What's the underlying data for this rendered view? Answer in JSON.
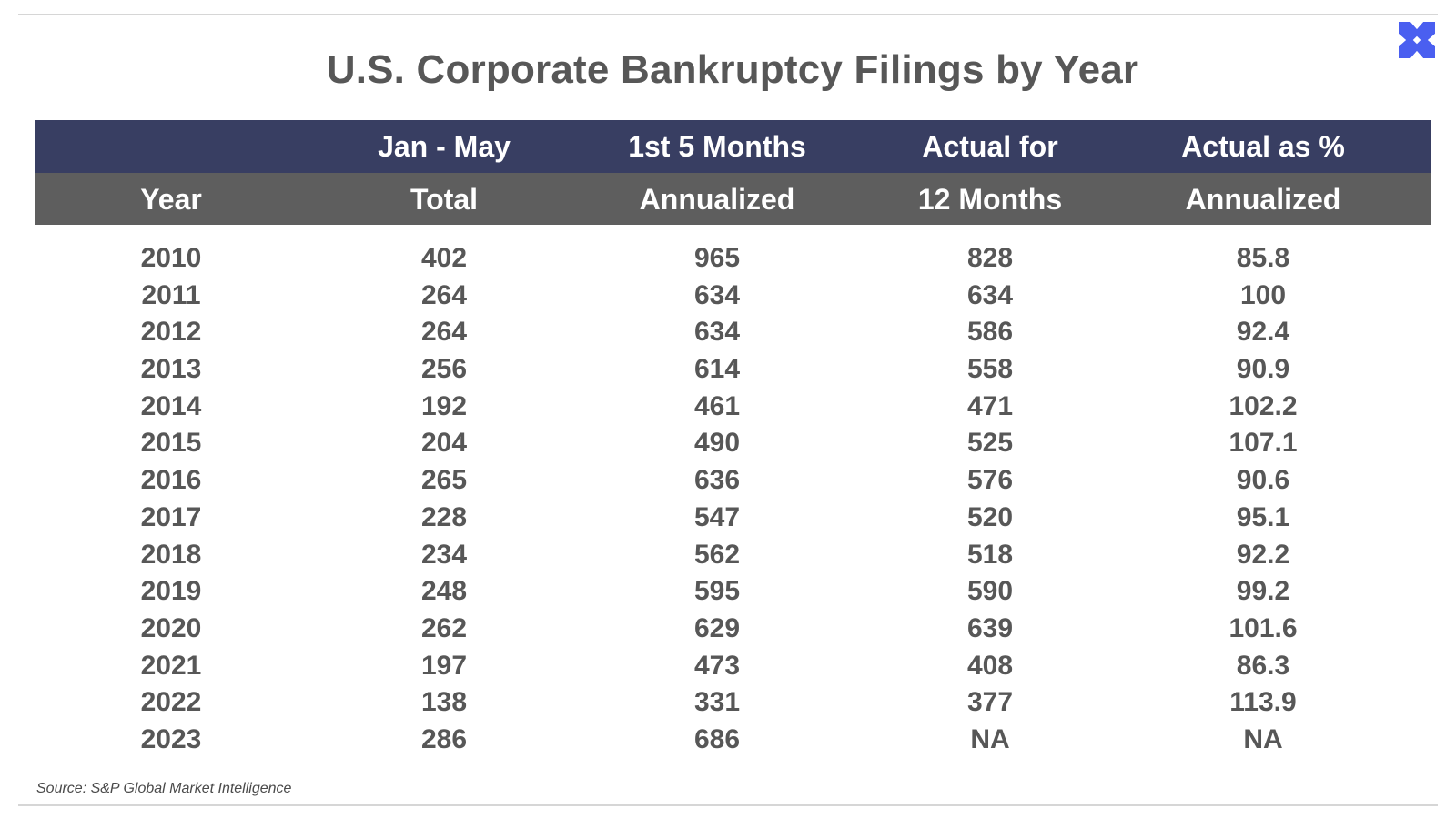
{
  "chart_data": {
    "type": "table",
    "title": "U.S. Corporate Bankruptcy Filings by Year",
    "columns": [
      [
        "",
        "Year"
      ],
      [
        "Jan - May",
        "Total"
      ],
      [
        "1st 5 Months",
        "Annualized"
      ],
      [
        "Actual for",
        "12 Months"
      ],
      [
        "Actual as %",
        "Annualized"
      ]
    ],
    "rows": [
      [
        "2010",
        "402",
        "965",
        "828",
        "85.8"
      ],
      [
        "2011",
        "264",
        "634",
        "634",
        "100"
      ],
      [
        "2012",
        "264",
        "634",
        "586",
        "92.4"
      ],
      [
        "2013",
        "256",
        "614",
        "558",
        "90.9"
      ],
      [
        "2014",
        "192",
        "461",
        "471",
        "102.2"
      ],
      [
        "2015",
        "204",
        "490",
        "525",
        "107.1"
      ],
      [
        "2016",
        "265",
        "636",
        "576",
        "90.6"
      ],
      [
        "2017",
        "228",
        "547",
        "520",
        "95.1"
      ],
      [
        "2018",
        "234",
        "562",
        "518",
        "92.2"
      ],
      [
        "2019",
        "248",
        "595",
        "590",
        "99.2"
      ],
      [
        "2020",
        "262",
        "629",
        "639",
        "101.6"
      ],
      [
        "2021",
        "197",
        "473",
        "408",
        "86.3"
      ],
      [
        "2022",
        "138",
        "331",
        "377",
        "113.9"
      ],
      [
        "2023",
        "286",
        "686",
        "NA",
        "NA"
      ]
    ],
    "source": "Source: S&P Global Market Intelligence"
  },
  "colors": {
    "header_top": "#383e62",
    "header_bottom": "#5e5e5e",
    "text": "#575757",
    "logo": "#4a5ff0"
  },
  "logo_icon": "x-logo-icon"
}
